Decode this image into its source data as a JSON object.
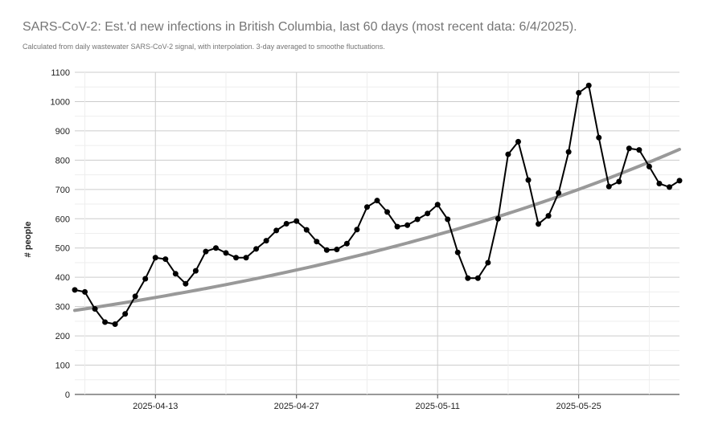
{
  "chart_data": {
    "type": "line",
    "title": "SARS-CoV-2: Est.'d new infections in British Columbia, last 60 days (most recent data: 6/4/2025).",
    "subtitle": "Calculated from daily wastewater SARS-CoV-2 signal, with interpolation. 3-day averaged to smoothe fluctuations.",
    "xlabel": "",
    "ylabel": "# people",
    "ylim": [
      0,
      1100
    ],
    "yticks": [
      "0",
      "100",
      "200",
      "300",
      "400",
      "500",
      "600",
      "700",
      "800",
      "900",
      "1000",
      "1100"
    ],
    "xlim": [
      "2025-04-05",
      "2025-06-04"
    ],
    "xticks": [
      "2025-04-13",
      "2025-04-27",
      "2025-05-11",
      "2025-05-25"
    ],
    "grid": true,
    "legend": "none",
    "series": [
      {
        "color": "#000000",
        "x": [
          "2025-04-05",
          "2025-04-06",
          "2025-04-07",
          "2025-04-08",
          "2025-04-09",
          "2025-04-10",
          "2025-04-11",
          "2025-04-12",
          "2025-04-13",
          "2025-04-14",
          "2025-04-15",
          "2025-04-16",
          "2025-04-17",
          "2025-04-18",
          "2025-04-19",
          "2025-04-20",
          "2025-04-21",
          "2025-04-22",
          "2025-04-23",
          "2025-04-24",
          "2025-04-25",
          "2025-04-26",
          "2025-04-27",
          "2025-04-28",
          "2025-04-29",
          "2025-04-30",
          "2025-05-01",
          "2025-05-02",
          "2025-05-03",
          "2025-05-04",
          "2025-05-05",
          "2025-05-06",
          "2025-05-07",
          "2025-05-08",
          "2025-05-09",
          "2025-05-10",
          "2025-05-11",
          "2025-05-12",
          "2025-05-13",
          "2025-05-14",
          "2025-05-15",
          "2025-05-16",
          "2025-05-17",
          "2025-05-18",
          "2025-05-19",
          "2025-05-20",
          "2025-05-21",
          "2025-05-22",
          "2025-05-23",
          "2025-05-24",
          "2025-05-25",
          "2025-05-26",
          "2025-05-27",
          "2025-05-28",
          "2025-05-29",
          "2025-05-30",
          "2025-05-31",
          "2025-06-01",
          "2025-06-02",
          "2025-06-03",
          "2025-06-04"
        ],
        "values": [
          357,
          350,
          292,
          247,
          240,
          275,
          335,
          395,
          467,
          462,
          412,
          378,
          422,
          488,
          500,
          483,
          467,
          467,
          497,
          525,
          560,
          583,
          592,
          562,
          522,
          493,
          495,
          515,
          563,
          640,
          662,
          623,
          573,
          578,
          598,
          618,
          648,
          598,
          485,
          397,
          397,
          450,
          600,
          820,
          863,
          732,
          582,
          610,
          688,
          828,
          1030,
          1055,
          877,
          710,
          727,
          840,
          835,
          778,
          720,
          708,
          730
        ]
      },
      {
        "color": "#999999",
        "x": [
          "2025-04-05",
          "2025-06-04"
        ],
        "trend_values": [
          287,
          837
        ]
      }
    ]
  }
}
